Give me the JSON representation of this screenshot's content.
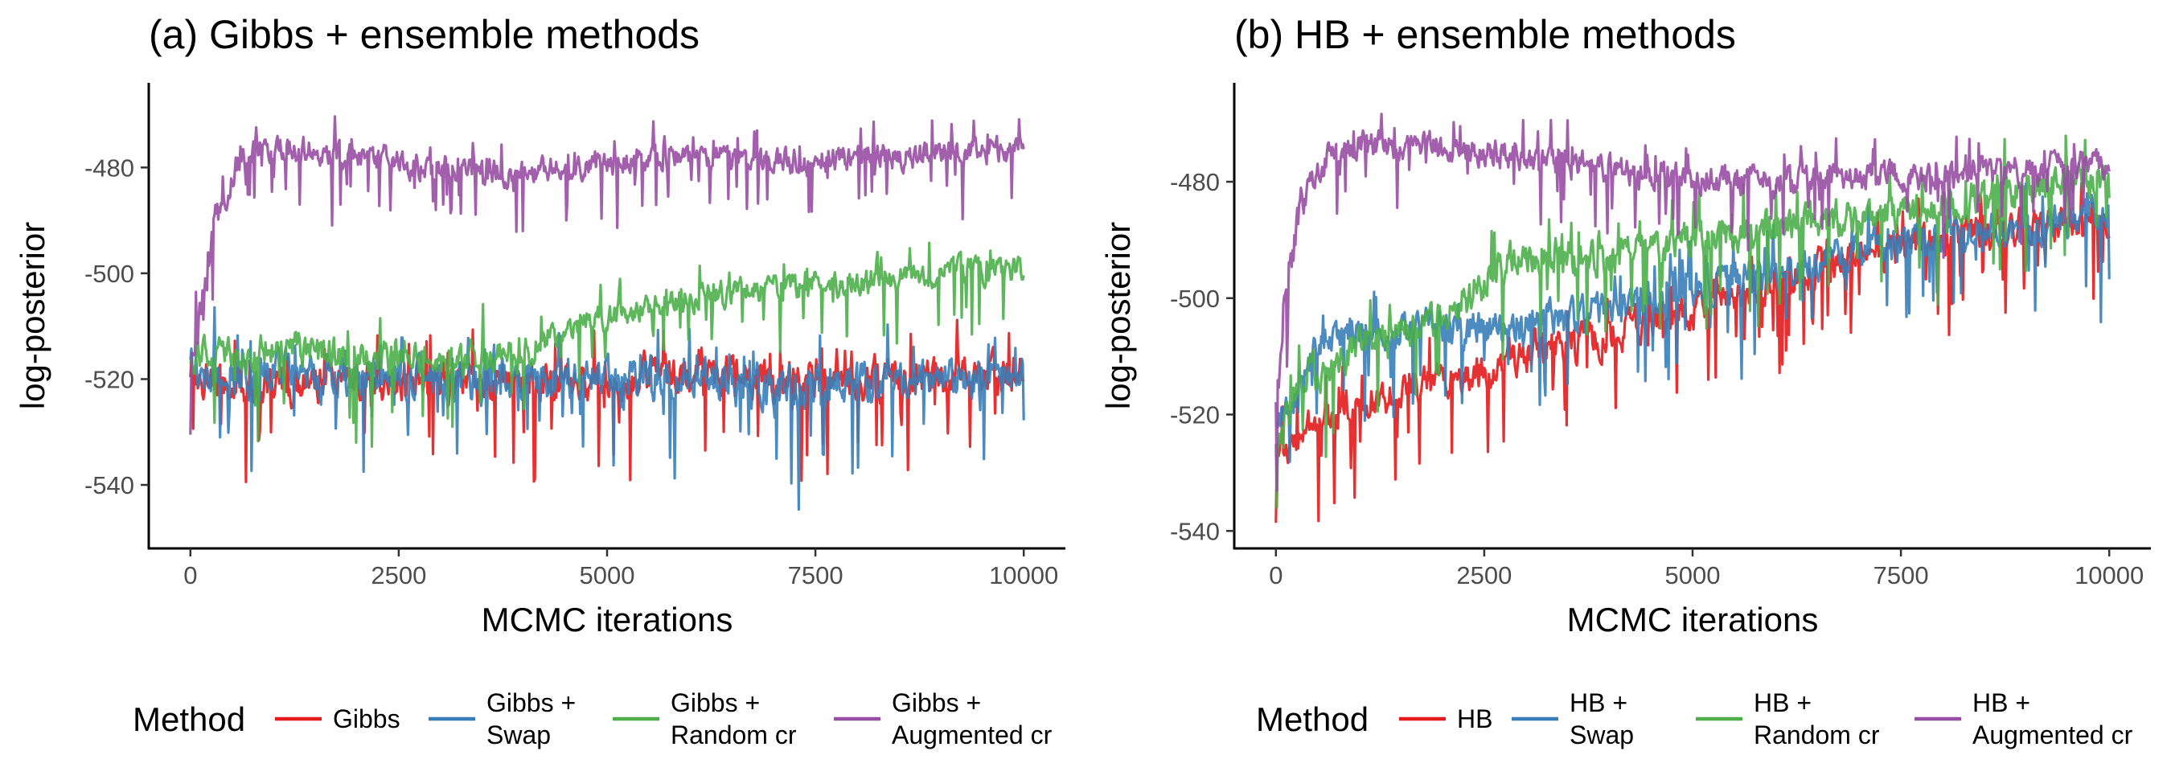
{
  "chart_data": [
    {
      "type": "line",
      "title": "(a) Gibbs + ensemble methods",
      "xlabel": "MCMC iterations",
      "ylabel": "log-posterior",
      "xlim": [
        -500,
        10500
      ],
      "ylim": [
        -552,
        -464
      ],
      "xticks": [
        0,
        2500,
        5000,
        7500,
        10000
      ],
      "xtick_labels": [
        "0",
        "2500",
        "5000",
        "7500",
        "10000"
      ],
      "yticks": [
        -480,
        -500,
        -520,
        -540
      ],
      "ytick_labels": [
        "-480",
        "-500",
        "-520",
        "-540"
      ],
      "legend": {
        "title": "Method",
        "position": "bottom",
        "entries": [
          {
            "lines": [
              "Gibbs"
            ],
            "color": "#E41A1C"
          },
          {
            "lines": [
              "Gibbs +",
              "Swap"
            ],
            "color": "#377EB8"
          },
          {
            "lines": [
              "Gibbs +",
              "Random cr"
            ],
            "color": "#4DAF4A"
          },
          {
            "lines": [
              "Gibbs +",
              "Augmented cr"
            ],
            "color": "#984EA3"
          }
        ]
      },
      "series": [
        {
          "name": "Gibbs",
          "color": "#E41A1C",
          "x": [
            0,
            250,
            500,
            1000,
            2000,
            3000,
            4000,
            5000,
            6000,
            7000,
            7500,
            8000,
            9000,
            10000
          ],
          "mean": [
            -518,
            -520,
            -521,
            -521,
            -520,
            -520,
            -521,
            -520,
            -519,
            -520,
            -519,
            -520,
            -520,
            -519
          ],
          "noise": [
            6,
            6,
            6,
            6,
            6,
            6,
            6,
            6,
            6,
            6,
            6,
            6,
            6,
            6
          ]
        },
        {
          "name": "Gibbs + Swap",
          "color": "#377EB8",
          "x": [
            0,
            250,
            500,
            1000,
            2000,
            3000,
            4000,
            5000,
            6000,
            7000,
            7500,
            8000,
            9000,
            10000
          ],
          "mean": [
            -518,
            -520,
            -520,
            -519,
            -520,
            -521,
            -520,
            -520,
            -520,
            -522,
            -523,
            -521,
            -520,
            -520
          ],
          "noise": [
            6,
            6,
            6,
            6,
            6,
            6,
            6,
            6,
            6,
            7,
            7,
            6,
            6,
            6
          ]
        },
        {
          "name": "Gibbs + Random cr",
          "color": "#4DAF4A",
          "x": [
            0,
            250,
            500,
            1000,
            2000,
            3000,
            4000,
            4500,
            5000,
            5500,
            6000,
            7000,
            7500,
            8000,
            9000,
            10000
          ],
          "mean": [
            -516,
            -515,
            -516,
            -514,
            -516,
            -517,
            -515,
            -510,
            -508,
            -506,
            -505,
            -503,
            -502,
            -502,
            -500,
            -499
          ],
          "noise": [
            5,
            5,
            5,
            5,
            5,
            5,
            5,
            4,
            4,
            4,
            4,
            4,
            4,
            4,
            4,
            4
          ]
        },
        {
          "name": "Gibbs + Augmented cr",
          "color": "#984EA3",
          "x": [
            0,
            150,
            300,
            600,
            1000,
            2000,
            3000,
            4000,
            5000,
            6000,
            7000,
            8000,
            9000,
            10000
          ],
          "mean": [
            -518,
            -505,
            -490,
            -478,
            -476,
            -478,
            -480,
            -481,
            -479,
            -478,
            -479,
            -478,
            -477,
            -477
          ],
          "noise": [
            6,
            6,
            5,
            4,
            4,
            4,
            4,
            4,
            4,
            4,
            4,
            4,
            4,
            4
          ]
        }
      ]
    },
    {
      "type": "line",
      "title": "(b) HB + ensemble methods",
      "xlabel": "MCMC iterations",
      "ylabel": "log-posterior",
      "xlim": [
        -500,
        10500
      ],
      "ylim": [
        -543,
        -463
      ],
      "xticks": [
        0,
        2500,
        5000,
        7500,
        10000
      ],
      "xtick_labels": [
        "0",
        "2500",
        "5000",
        "7500",
        "10000"
      ],
      "yticks": [
        -480,
        -500,
        -520,
        -540
      ],
      "ytick_labels": [
        "-480",
        "-500",
        "-520",
        "-540"
      ],
      "legend": {
        "title": "Method",
        "position": "bottom",
        "entries": [
          {
            "lines": [
              "HB"
            ],
            "color": "#E41A1C"
          },
          {
            "lines": [
              "HB +",
              "Swap"
            ],
            "color": "#377EB8"
          },
          {
            "lines": [
              "HB +",
              "Random cr"
            ],
            "color": "#4DAF4A"
          },
          {
            "lines": [
              "HB +",
              "Augmented cr"
            ],
            "color": "#984EA3"
          }
        ]
      },
      "series": [
        {
          "name": "HB",
          "color": "#E41A1C",
          "x": [
            0,
            500,
            1000,
            2000,
            3000,
            4000,
            5000,
            6000,
            7000,
            8000,
            9000,
            10000
          ],
          "mean": [
            -526,
            -522,
            -518,
            -514,
            -510,
            -506,
            -502,
            -497,
            -493,
            -490,
            -488,
            -486
          ],
          "noise": [
            5,
            5,
            5,
            5,
            5,
            5,
            5,
            5,
            5,
            5,
            5,
            5
          ]
        },
        {
          "name": "HB + Swap",
          "color": "#377EB8",
          "x": [
            0,
            300,
            600,
            1000,
            2000,
            3000,
            4000,
            5000,
            6000,
            7000,
            8000,
            9000,
            10000
          ],
          "mean": [
            -522,
            -515,
            -505,
            -506,
            -505,
            -505,
            -502,
            -498,
            -495,
            -492,
            -490,
            -488,
            -485
          ],
          "noise": [
            5,
            5,
            5,
            5,
            5,
            5,
            5,
            5,
            5,
            5,
            5,
            5,
            5
          ]
        },
        {
          "name": "HB + Random cr",
          "color": "#4DAF4A",
          "x": [
            0,
            300,
            1000,
            2000,
            2600,
            3000,
            4000,
            5000,
            6000,
            7000,
            8000,
            9000,
            10000
          ],
          "mean": [
            -524,
            -515,
            -508,
            -504,
            -496,
            -492,
            -493,
            -490,
            -488,
            -486,
            -484,
            -481,
            -479
          ],
          "noise": [
            5,
            5,
            5,
            5,
            5,
            5,
            5,
            5,
            5,
            5,
            5,
            5,
            5
          ]
        },
        {
          "name": "HB + Augmented cr",
          "color": "#984EA3",
          "x": [
            0,
            100,
            300,
            600,
            1000,
            2000,
            3000,
            4000,
            5000,
            6000,
            7000,
            8000,
            9000,
            10000
          ],
          "mean": [
            -520,
            -500,
            -484,
            -476,
            -474,
            -474,
            -476,
            -478,
            -479,
            -480,
            -479,
            -479,
            -478,
            -477
          ],
          "noise": [
            6,
            6,
            5,
            4,
            4,
            4,
            4,
            4,
            4,
            4,
            4,
            4,
            4,
            4
          ]
        }
      ]
    }
  ]
}
